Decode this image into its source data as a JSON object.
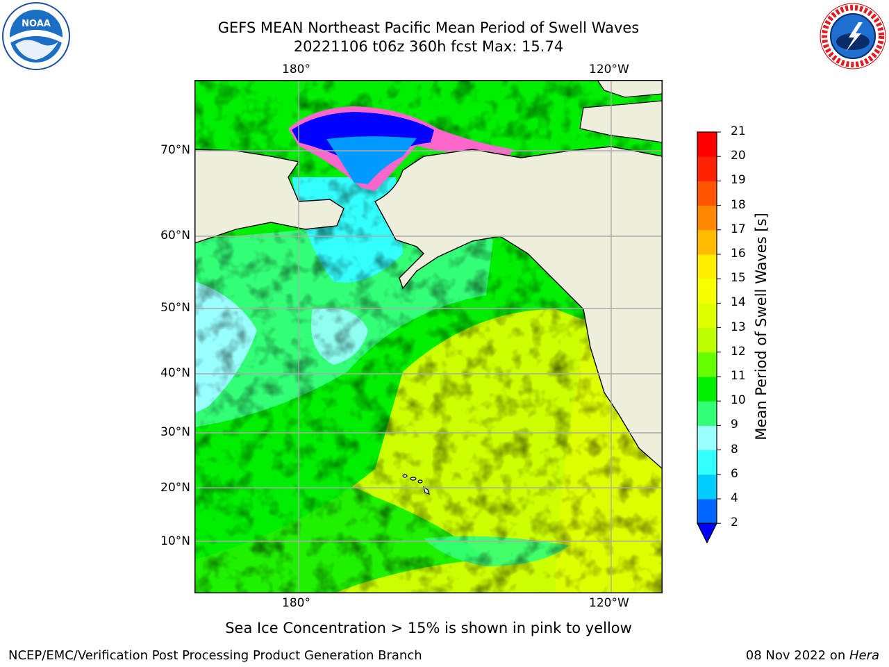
{
  "header": {
    "title_line1": "GEFS MEAN Northeast Pacific Mean Period of Swell Waves",
    "title_line2": "20221106 t06z 360h fcst   Max: 15.74"
  },
  "chart_data": {
    "type": "heatmap",
    "title": "GEFS MEAN Northeast Pacific Mean Period of Swell Waves",
    "subtitle": "20221106 t06z 360h fcst   Max: 15.74",
    "max_value": 15.74,
    "x_tick_labels": [
      "180°",
      "120°W"
    ],
    "y_tick_labels": [
      "70°N",
      "60°N",
      "50°N",
      "40°N",
      "30°N",
      "20°N",
      "10°N"
    ],
    "grid": true,
    "colorbar": {
      "label": "Mean Period of Swell Waves [s]",
      "ticks": [
        2,
        4,
        6,
        8,
        9,
        10,
        11,
        12,
        13,
        14,
        15,
        16,
        17,
        18,
        19,
        20,
        21
      ],
      "colors": [
        "#0066ff",
        "#00ccff",
        "#33ffff",
        "#99ffff",
        "#33ff77",
        "#00ee00",
        "#66ff00",
        "#bbff00",
        "#ddff00",
        "#f5ff00",
        "#ffee00",
        "#ffbb00",
        "#ff8800",
        "#ff5500",
        "#ff2200",
        "#ff0000"
      ],
      "extend_color": "#0000ff"
    },
    "land_color": "#efeedc",
    "ocean_colors": {
      "north_dominant": "#33ff77",
      "central_dominant": "#00ee00",
      "south_dominant": "#ddff00",
      "cyan_patches": "#99ffff",
      "arctic_blue": "#0000ff",
      "arctic_light": "#0099ff",
      "ice_edge": "#ff66cc"
    }
  },
  "note": "Sea Ice Concentration > 15% is shown in pink to yellow",
  "footer": {
    "left": "NCEP/EMC/Verification Post Processing Product Generation Branch",
    "date": "08 Nov 2022 on ",
    "machine": "Hera"
  },
  "logos": {
    "left_text": "NOAA",
    "right_text": "NATIONAL WEATHER SERVICE"
  }
}
